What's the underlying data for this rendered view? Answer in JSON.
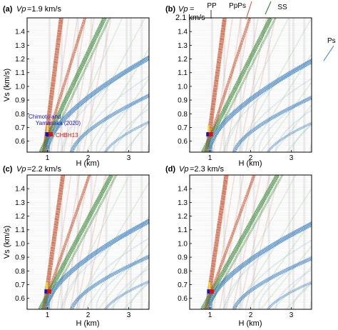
{
  "chart_data": [
    {
      "panel_label": "(a)",
      "vp_prefix": "Vp",
      "vp_value": "=1.9 km/s",
      "type": "heatmap",
      "xlabel": "H (km)",
      "ylabel": "Vs (km/s)",
      "xlim": [
        0.5,
        3.5
      ],
      "ylim": [
        0.52,
        1.5
      ],
      "xticks": [
        1,
        2,
        3
      ],
      "yticks": [
        0.6,
        0.7,
        0.8,
        0.9,
        1.0,
        1.1,
        1.2,
        1.3,
        1.4
      ],
      "markers": [
        {
          "name": "Chimoto and Yamanaka (2020)",
          "H": 1.0,
          "Vs": 0.65,
          "color": "#1010d0"
        },
        {
          "name": "CHBH13",
          "H": 1.08,
          "Vs": 0.65,
          "color": "#e01010"
        }
      ],
      "annotations": [
        "Chimoto and",
        "Yamanaka (2020)",
        "CHBH13"
      ]
    },
    {
      "panel_label": "(b)",
      "vp_prefix": "Vp",
      "vp_value": "=",
      "vp_value_line2": "2.1 km/s",
      "type": "heatmap",
      "xlabel": "H (km)",
      "ylabel": "",
      "xlim": [
        0.5,
        3.5
      ],
      "ylim": [
        0.52,
        1.5
      ],
      "xticks": [
        1,
        2,
        3
      ],
      "yticks": [
        0.6,
        0.7,
        0.8,
        0.9,
        1.0,
        1.1,
        1.2,
        1.3,
        1.4
      ],
      "phase_labels": [
        "PP",
        "PpPs",
        "SS",
        "Ps"
      ],
      "markers": [
        {
          "H": 0.96,
          "Vs": 0.65,
          "color": "#1010d0"
        },
        {
          "H": 1.02,
          "Vs": 0.65,
          "color": "#e01010"
        }
      ]
    },
    {
      "panel_label": "(c)",
      "vp_prefix": "Vp",
      "vp_value": "=2.2 km/s",
      "type": "heatmap",
      "xlabel": "H (km)",
      "ylabel": "Vs (km/s)",
      "xlim": [
        0.5,
        3.5
      ],
      "ylim": [
        0.52,
        1.5
      ],
      "xticks": [
        1,
        2,
        3
      ],
      "yticks": [
        0.6,
        0.7,
        0.8,
        0.9,
        1.0,
        1.1,
        1.2,
        1.3,
        1.4
      ],
      "markers": [
        {
          "H": 0.98,
          "Vs": 0.65,
          "color": "#1010d0"
        },
        {
          "H": 1.04,
          "Vs": 0.65,
          "color": "#e01010"
        }
      ]
    },
    {
      "panel_label": "(d)",
      "vp_prefix": "Vp",
      "vp_value": "=2.3 km/s",
      "type": "heatmap",
      "xlabel": "H (km)",
      "ylabel": "",
      "xlim": [
        0.5,
        3.5
      ],
      "ylim": [
        0.52,
        1.5
      ],
      "xticks": [
        1,
        2,
        3
      ],
      "yticks": [
        0.6,
        0.7,
        0.8,
        0.9,
        1.0,
        1.1,
        1.2,
        1.3,
        1.4
      ],
      "markers": [
        {
          "H": 0.98,
          "Vs": 0.65,
          "color": "#1010d0"
        },
        {
          "H": 1.04,
          "Vs": 0.65,
          "color": "#e01010"
        }
      ]
    }
  ],
  "colors": {
    "pp_red": "#c8502a",
    "ss_green": "#3c8c3c",
    "ps_blue": "#3a7fc0",
    "faint_red": "#e8a898",
    "faint_blue": "#a8c8e6",
    "faint_green": "#a8d0a0",
    "marker_yellow": "#f0e020"
  }
}
